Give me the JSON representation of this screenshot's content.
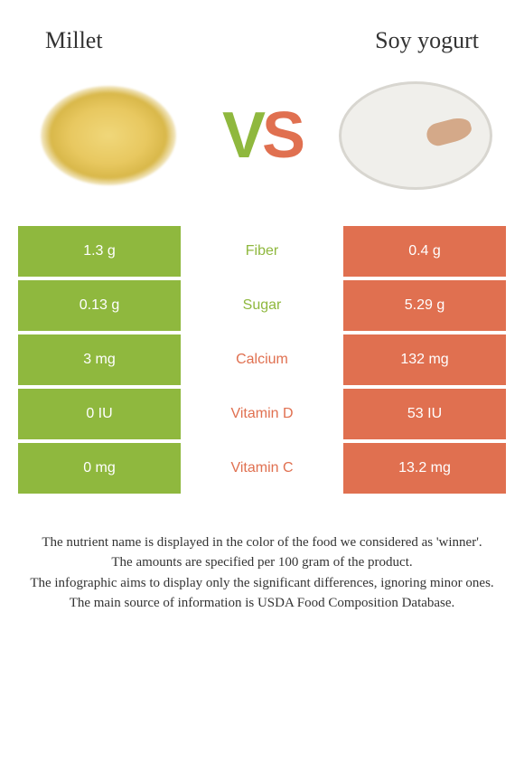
{
  "header": {
    "left_title": "Millet",
    "right_title": "Soy yogurt",
    "vs_v": "V",
    "vs_s": "S"
  },
  "colors": {
    "green": "#8fb83e",
    "orange": "#e07050",
    "mid_bg": "#ffffff"
  },
  "rows": [
    {
      "nutrient": "Fiber",
      "left": "1.3 g",
      "right": "0.4 g",
      "winner": "left"
    },
    {
      "nutrient": "Sugar",
      "left": "0.13 g",
      "right": "5.29 g",
      "winner": "left"
    },
    {
      "nutrient": "Calcium",
      "left": "3 mg",
      "right": "132 mg",
      "winner": "right"
    },
    {
      "nutrient": "Vitamin D",
      "left": "0 IU",
      "right": "53 IU",
      "winner": "right"
    },
    {
      "nutrient": "Vitamin C",
      "left": "0 mg",
      "right": "13.2 mg",
      "winner": "right"
    }
  ],
  "footer": {
    "line1": "The nutrient name is displayed in the color of the food we considered as 'winner'.",
    "line2": "The amounts are specified per 100 gram of the product.",
    "line3": "The infographic aims to display only the significant differences, ignoring minor ones.",
    "line4": "The main source of information is USDA Food Composition Database."
  }
}
